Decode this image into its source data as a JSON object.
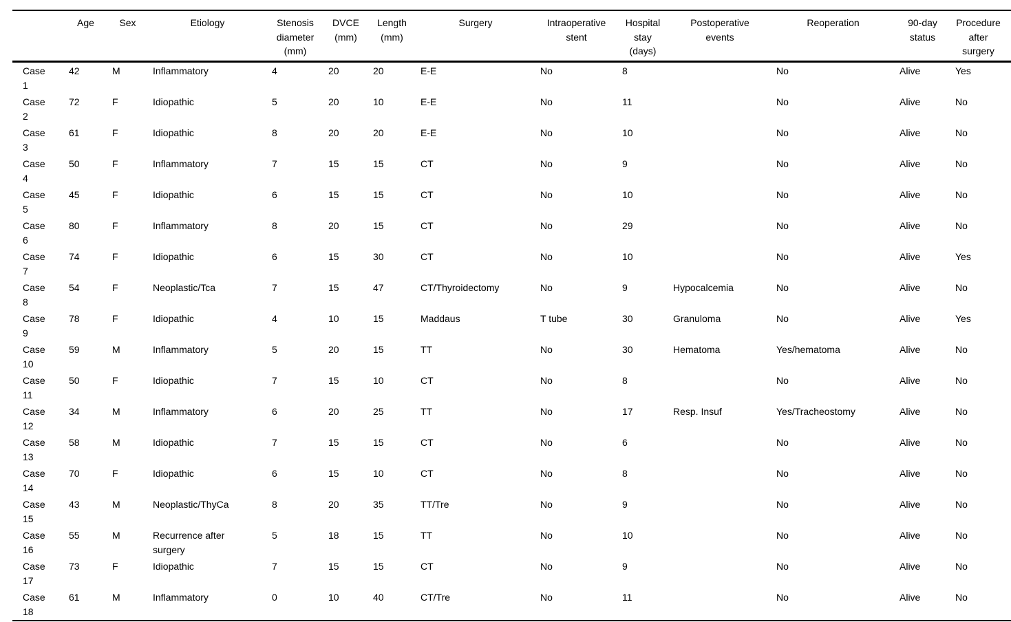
{
  "colors": {
    "background": "#ffffff",
    "text": "#000000",
    "rules": "#000000"
  },
  "table": {
    "columns": [
      {
        "key": "case",
        "label": ""
      },
      {
        "key": "age",
        "label": "Age"
      },
      {
        "key": "sex",
        "label": "Sex"
      },
      {
        "key": "etiology",
        "label": "Etiology"
      },
      {
        "key": "stenosis",
        "label": "Stenosis diameter (mm)"
      },
      {
        "key": "dvce",
        "label": "DVCE (mm)"
      },
      {
        "key": "length",
        "label": "Length (mm)"
      },
      {
        "key": "surgery",
        "label": "Surgery"
      },
      {
        "key": "stent",
        "label": "Intraoperative stent"
      },
      {
        "key": "stay",
        "label": "Hospital stay (days)"
      },
      {
        "key": "postop",
        "label": "Postoperative events"
      },
      {
        "key": "reoperation",
        "label": "Reoperation"
      },
      {
        "key": "status",
        "label": "90-day status"
      },
      {
        "key": "procedure",
        "label": "Procedure after surgery"
      }
    ],
    "rows": [
      [
        "Case 1",
        "42",
        "M",
        "Inflammatory",
        "4",
        "20",
        "20",
        "E-E",
        "No",
        "8",
        "",
        "No",
        "Alive",
        "Yes"
      ],
      [
        "Case 2",
        "72",
        "F",
        "Idiopathic",
        "5",
        "20",
        "10",
        "E-E",
        "No",
        "11",
        "",
        "No",
        "Alive",
        "No"
      ],
      [
        "Case 3",
        "61",
        "F",
        "Idiopathic",
        "8",
        "20",
        "20",
        "E-E",
        "No",
        "10",
        "",
        "No",
        "Alive",
        "No"
      ],
      [
        "Case 4",
        "50",
        "F",
        "Inflammatory",
        "7",
        "15",
        "15",
        "CT",
        "No",
        "9",
        "",
        "No",
        "Alive",
        "No"
      ],
      [
        "Case 5",
        "45",
        "F",
        "Idiopathic",
        "6",
        "15",
        "15",
        "CT",
        "No",
        "10",
        "",
        "No",
        "Alive",
        "No"
      ],
      [
        "Case 6",
        "80",
        "F",
        "Inflammatory",
        "8",
        "20",
        "15",
        "CT",
        "No",
        "29",
        "",
        "No",
        "Alive",
        "No"
      ],
      [
        "Case 7",
        "74",
        "F",
        "Idiopathic",
        "6",
        "15",
        "30",
        "CT",
        "No",
        "10",
        "",
        "No",
        "Alive",
        "Yes"
      ],
      [
        "Case 8",
        "54",
        "F",
        "Neoplastic/Tca",
        "7",
        "15",
        "47",
        "CT/Thyroidectomy",
        "No",
        "9",
        "Hypocalcemia",
        "No",
        "Alive",
        "No"
      ],
      [
        "Case 9",
        "78",
        "F",
        "Idiopathic",
        "4",
        "10",
        "15",
        "Maddaus",
        "T tube",
        "30",
        "Granuloma",
        "No",
        "Alive",
        "Yes"
      ],
      [
        "Case 10",
        "59",
        "M",
        "Inflammatory",
        "5",
        "20",
        "15",
        "TT",
        "No",
        "30",
        "Hematoma",
        "Yes/hematoma",
        "Alive",
        "No"
      ],
      [
        "Case 11",
        "50",
        "F",
        "Idiopathic",
        "7",
        "15",
        "10",
        "CT",
        "No",
        "8",
        "",
        "No",
        "Alive",
        "No"
      ],
      [
        "Case 12",
        "34",
        "M",
        "Inflammatory",
        "6",
        "20",
        "25",
        "TT",
        "No",
        "17",
        "Resp. Insuf",
        "Yes/Tracheostomy",
        "Alive",
        "No"
      ],
      [
        "Case 13",
        "58",
        "M",
        "Idiopathic",
        "7",
        "15",
        "15",
        "CT",
        "No",
        "6",
        "",
        "No",
        "Alive",
        "No"
      ],
      [
        "Case 14",
        "70",
        "F",
        "Idiopathic",
        "6",
        "15",
        "10",
        "CT",
        "No",
        "8",
        "",
        "No",
        "Alive",
        "No"
      ],
      [
        "Case 15",
        "43",
        "M",
        "Neoplastic/ThyCa",
        "8",
        "20",
        "35",
        "TT/Tre",
        "No",
        "9",
        "",
        "No",
        "Alive",
        "No"
      ],
      [
        "Case 16",
        "55",
        "M",
        "Recurrence after surgery",
        "5",
        "18",
        "15",
        "TT",
        "No",
        "10",
        "",
        "No",
        "Alive",
        "No"
      ],
      [
        "Case 17",
        "73",
        "F",
        "Idiopathic",
        "7",
        "15",
        "15",
        "CT",
        "No",
        "9",
        "",
        "No",
        "Alive",
        "No"
      ],
      [
        "Case 18",
        "61",
        "M",
        "Inflammatory",
        "0",
        "10",
        "40",
        "CT/Tre",
        "No",
        "11",
        "",
        "No",
        "Alive",
        "No"
      ]
    ]
  }
}
